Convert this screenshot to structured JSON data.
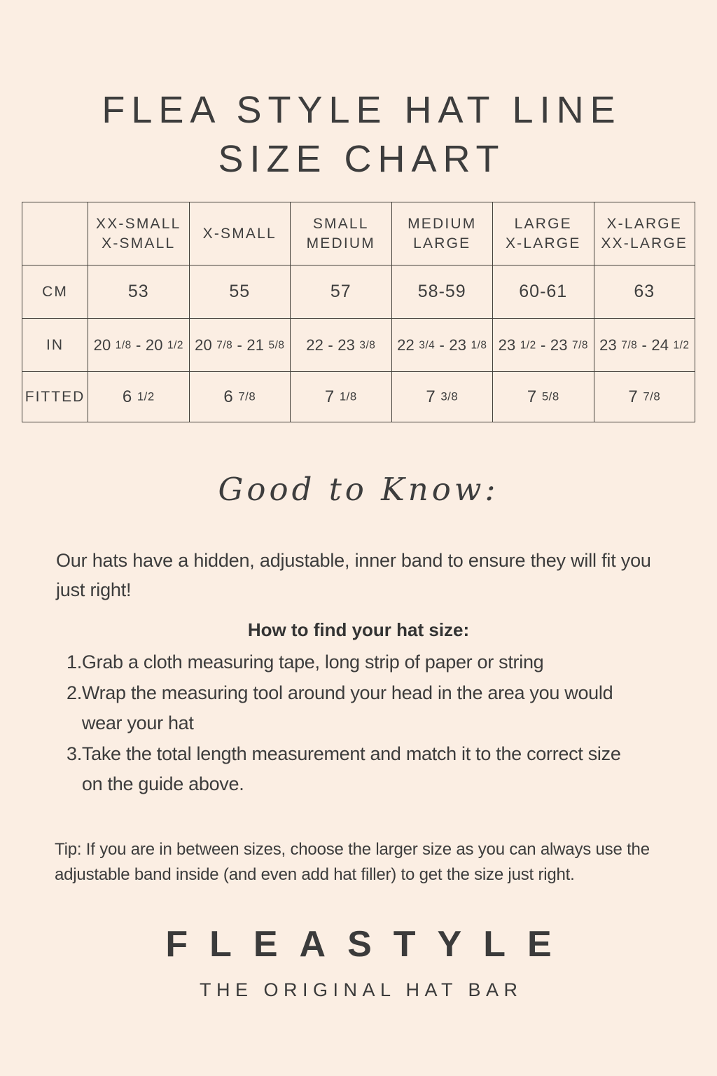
{
  "colors": {
    "background": "#fbeee3",
    "text": "#3d3d3d",
    "table_border": "#45423c"
  },
  "title": {
    "line1": "FLEA STYLE HAT LINE",
    "line2": "SIZE CHART"
  },
  "size_table": {
    "columns": [
      {
        "line1": "XX-SMALL",
        "line2": "X-SMALL"
      },
      {
        "line1": "X-SMALL",
        "line2": ""
      },
      {
        "line1": "SMALL",
        "line2": "MEDIUM"
      },
      {
        "line1": "MEDIUM",
        "line2": "LARGE"
      },
      {
        "line1": "LARGE",
        "line2": "X-LARGE"
      },
      {
        "line1": "X-LARGE",
        "line2": "XX-LARGE"
      }
    ],
    "rows": [
      {
        "label": "CM",
        "values": [
          "53",
          "55",
          "57",
          "58-59",
          "60-61",
          "63"
        ]
      },
      {
        "label": "IN",
        "values": [
          "20 1/8 - 20 1/2",
          "20 7/8 - 21 5/8",
          "22 - 23 3/8",
          "22 3/4 - 23 1/8",
          "23 1/2 - 23 7/8",
          "23 7/8 - 24 1/2"
        ]
      },
      {
        "label": "FITTED",
        "values": [
          "6 1/2",
          "6 7/8",
          "7 1/8",
          "7 3/8",
          "7 5/8",
          "7 7/8"
        ]
      }
    ]
  },
  "good_to_know": {
    "heading": "Good to Know:",
    "body": "Our hats have a hidden, adjustable, inner band to ensure they will fit you just right!"
  },
  "how_to": {
    "heading": "How to find your hat size:",
    "steps": [
      {
        "num": "1.",
        "text": "Grab a cloth measuring tape, long strip of paper or string"
      },
      {
        "num": "2.",
        "text": "Wrap the measuring tool around your head in the area you would wear your hat"
      },
      {
        "num": "3.",
        "text": "Take the total length measurement and match it to the correct size on the guide above."
      }
    ]
  },
  "tip": "Tip: If you are in between sizes, choose the larger size as you can always use the adjustable band inside (and even add hat filler) to get the size just right.",
  "footer": {
    "brand": "FLEASTYLE",
    "tagline": "THE ORIGINAL HAT BAR"
  }
}
